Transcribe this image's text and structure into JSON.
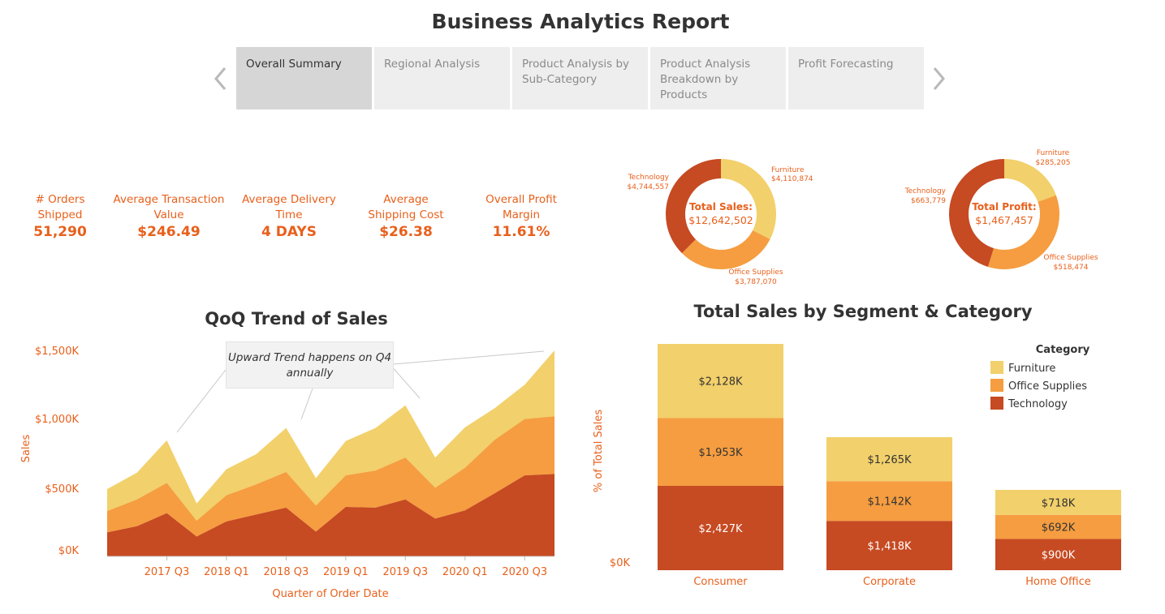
{
  "title": "Business Analytics Report",
  "nav": {
    "tabs": [
      {
        "label": "Overall Summary",
        "active": true
      },
      {
        "label": "Regional Analysis",
        "active": false
      },
      {
        "label": "Product Analysis by Sub-Category",
        "active": false
      },
      {
        "label": "Product Analysis Breakdown by Products",
        "active": false
      },
      {
        "label": "Profit Forecasting",
        "active": false
      }
    ]
  },
  "kpis": [
    {
      "label": "# Orders Shipped",
      "value": "51,290"
    },
    {
      "label": "Average Transaction Value",
      "value": "$246.49"
    },
    {
      "label": "Average Delivery Time",
      "value": "4 DAYS"
    },
    {
      "label": "Average Shipping Cost",
      "value": "$26.38"
    },
    {
      "label": "Overall Profit Margin",
      "value": "11.61%"
    }
  ],
  "colors": {
    "furniture": "#f2d06b",
    "office_supplies": "#f59d40",
    "technology": "#c64a22",
    "accent": "#e8601c",
    "title": "#333333"
  },
  "donuts": [
    {
      "center_label": "Total Sales:",
      "center_value": "$12,642,502",
      "slices": [
        {
          "name": "Furniture",
          "value": 4110874,
          "label": "$4,110,874"
        },
        {
          "name": "Office Supplies",
          "value": 3787070,
          "label": "$3,787,070"
        },
        {
          "name": "Technology",
          "value": 4744557,
          "label": "$4,744,557"
        }
      ]
    },
    {
      "center_label": "Total Profit:",
      "center_value": "$1,467,457",
      "slices": [
        {
          "name": "Furniture",
          "value": 285205,
          "label": "$285,205"
        },
        {
          "name": "Office Supplies",
          "value": 518474,
          "label": "$518,474"
        },
        {
          "name": "Technology",
          "value": 663779,
          "label": "$663,779"
        }
      ]
    }
  ],
  "chart_data": [
    {
      "type": "area",
      "title": "QoQ Trend of Sales",
      "xlabel": "Quarter of Order Date",
      "ylabel": "Sales",
      "ylim": [
        0,
        1500
      ],
      "y_ticks": [
        "$0K",
        "$500K",
        "$1,000K",
        "$1,500K"
      ],
      "x_tick_labels": [
        "2017 Q3",
        "2018 Q1",
        "2018 Q3",
        "2019 Q1",
        "2019 Q3",
        "2020 Q1",
        "2020 Q3"
      ],
      "x": [
        "2017 Q1",
        "2017 Q2",
        "2017 Q3",
        "2017 Q4",
        "2018 Q1",
        "2018 Q2",
        "2018 Q3",
        "2018 Q4",
        "2019 Q1",
        "2019 Q2",
        "2019 Q3",
        "2019 Q4",
        "2020 Q1",
        "2020 Q2",
        "2020 Q3",
        "2020 Q4"
      ],
      "stacked": true,
      "series": [
        {
          "name": "Technology",
          "values": [
            175,
            220,
            315,
            145,
            255,
            305,
            355,
            180,
            360,
            355,
            415,
            275,
            335,
            460,
            590,
            600
          ]
        },
        {
          "name": "Office Supplies",
          "values": [
            155,
            195,
            220,
            115,
            190,
            220,
            260,
            190,
            230,
            270,
            305,
            225,
            310,
            390,
            410,
            420
          ]
        },
        {
          "name": "Furniture",
          "values": [
            160,
            195,
            310,
            125,
            190,
            220,
            320,
            200,
            250,
            310,
            380,
            220,
            295,
            230,
            250,
            480
          ]
        }
      ],
      "annotation": "Upward Trend happens on Q4 annually"
    },
    {
      "type": "bar",
      "title": "Total Sales by Segment & Category",
      "ylabel": "% of Total Sales",
      "y_ticks": [
        "$0K"
      ],
      "categories": [
        "Consumer",
        "Corporate",
        "Home Office"
      ],
      "stacked": true,
      "legend_title": "Category",
      "legend_position": "top-right",
      "series": [
        {
          "name": "Technology",
          "values": [
            2427,
            1418,
            900
          ],
          "labels": [
            "$2,427K",
            "$1,418K",
            "$900K"
          ]
        },
        {
          "name": "Office Supplies",
          "values": [
            1953,
            1142,
            692
          ],
          "labels": [
            "$1,953K",
            "$1,142K",
            "$692K"
          ]
        },
        {
          "name": "Furniture",
          "values": [
            2128,
            1265,
            718
          ],
          "labels": [
            "$2,128K",
            "$1,265K",
            "$718K"
          ]
        }
      ]
    }
  ]
}
